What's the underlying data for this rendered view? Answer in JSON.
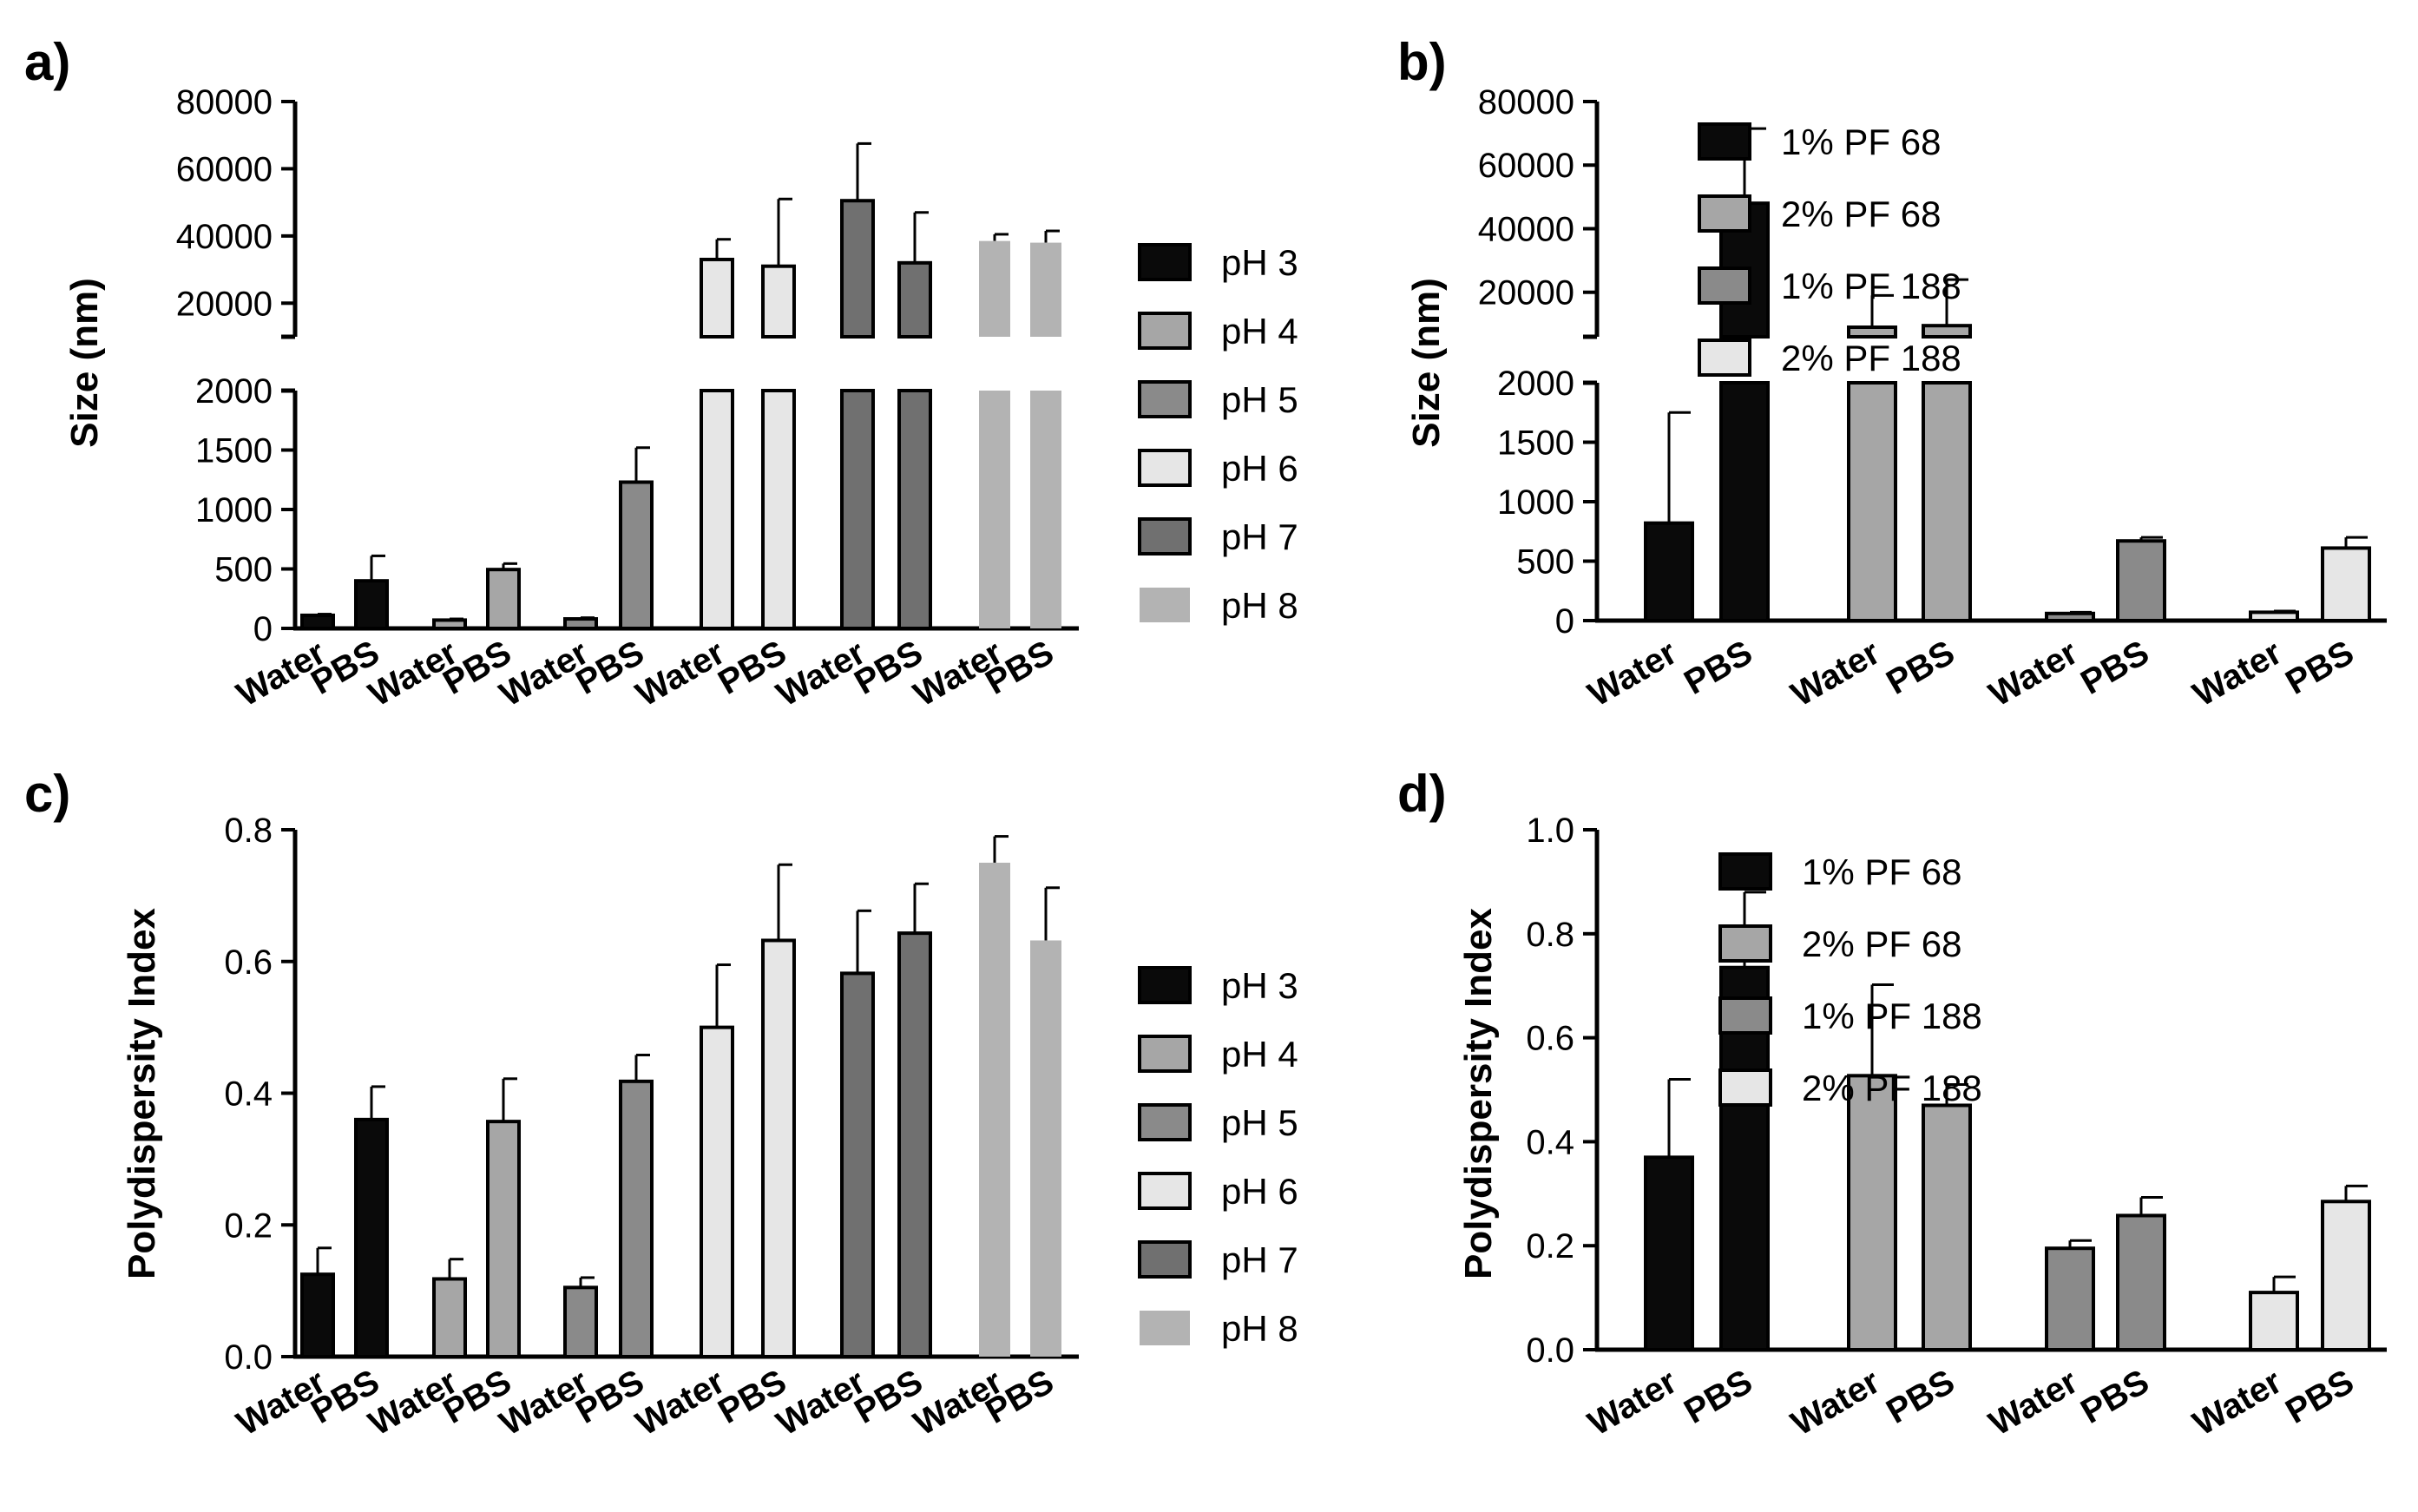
{
  "colors": {
    "pH 3": "#0a0a0a",
    "pH 4": "#a6a6a6",
    "pH 5": "#8a8a8a",
    "pH 6": "#e6e6e6",
    "pH 7": "#707070",
    "pH 8": "#b3b3b3",
    "1% PF 68": "#0a0a0a",
    "2% PF 68": "#a6a6a6",
    "1% PF 188": "#8a8a8a",
    "2% PF 188": "#e6e6e6"
  },
  "chart_data": [
    {
      "id": "a",
      "panel_label": "a)",
      "type": "bar",
      "ylabel": "Size (nm)",
      "x_categories": [
        "Water",
        "PBS"
      ],
      "broken_axis": true,
      "lower_ylim": [
        0,
        2000
      ],
      "lower_ticks": [
        0,
        500,
        1000,
        1500,
        2000
      ],
      "upper_ylim": [
        10000,
        80000
      ],
      "upper_ticks": [
        20000,
        40000,
        60000,
        80000
      ],
      "series": [
        {
          "name": "pH 3",
          "values": [
            110,
            400
          ],
          "errors": [
            10,
            210
          ]
        },
        {
          "name": "pH 4",
          "values": [
            70,
            495
          ],
          "errors": [
            10,
            50
          ]
        },
        {
          "name": "pH 5",
          "values": [
            80,
            1230
          ],
          "errors": [
            10,
            290
          ]
        },
        {
          "name": "pH 6",
          "values": [
            33000,
            31000
          ],
          "errors": [
            6000,
            20000
          ]
        },
        {
          "name": "pH 7",
          "values": [
            50500,
            32000
          ],
          "errors": [
            17000,
            15000
          ]
        },
        {
          "name": "pH 8",
          "values": [
            38500,
            38000
          ],
          "errors": [
            2000,
            3500
          ]
        }
      ]
    },
    {
      "id": "b",
      "panel_label": "b)",
      "type": "bar",
      "ylabel": "Size (nm)",
      "x_categories": [
        "Water",
        "PBS"
      ],
      "broken_axis": true,
      "lower_ylim": [
        0,
        2000
      ],
      "lower_ticks": [
        0,
        500,
        1000,
        1500,
        2000
      ],
      "upper_ylim": [
        6000,
        80000
      ],
      "upper_ticks": [
        20000,
        40000,
        60000,
        80000
      ],
      "series": [
        {
          "name": "1% PF 68",
          "values": [
            820,
            48000
          ],
          "errors": [
            930,
            23500
          ]
        },
        {
          "name": "2% PF 68",
          "values": [
            9000,
            9500
          ],
          "errors": [
            10000,
            14500
          ]
        },
        {
          "name": "1% PF 188",
          "values": [
            60,
            670
          ],
          "errors": [
            10,
            30
          ]
        },
        {
          "name": "2% PF 188",
          "values": [
            70,
            610
          ],
          "errors": [
            10,
            90
          ]
        }
      ]
    },
    {
      "id": "c",
      "panel_label": "c)",
      "type": "bar",
      "ylabel": "Polydispersity Index",
      "x_categories": [
        "Water",
        "PBS"
      ],
      "broken_axis": false,
      "ylim": [
        0,
        0.8
      ],
      "ticks": [
        "0.0",
        "0.2",
        "0.4",
        "0.6",
        "0.8"
      ],
      "series": [
        {
          "name": "pH 3",
          "values": [
            0.125,
            0.36
          ],
          "errors": [
            0.04,
            0.05
          ]
        },
        {
          "name": "pH 4",
          "values": [
            0.118,
            0.357
          ],
          "errors": [
            0.03,
            0.065
          ]
        },
        {
          "name": "pH 5",
          "values": [
            0.105,
            0.418
          ],
          "errors": [
            0.015,
            0.04
          ]
        },
        {
          "name": "pH 6",
          "values": [
            0.5,
            0.632
          ],
          "errors": [
            0.095,
            0.115
          ]
        },
        {
          "name": "pH 7",
          "values": [
            0.582,
            0.643
          ],
          "errors": [
            0.095,
            0.075
          ]
        },
        {
          "name": "pH 8",
          "values": [
            0.75,
            0.632
          ],
          "errors": [
            0.04,
            0.08
          ]
        }
      ]
    },
    {
      "id": "d",
      "panel_label": "d)",
      "type": "bar",
      "ylabel": "Polydispersity Index",
      "x_categories": [
        "Water",
        "PBS"
      ],
      "broken_axis": false,
      "ylim": [
        0,
        1.0
      ],
      "ticks": [
        "0.0",
        "0.2",
        "0.4",
        "0.6",
        "0.8",
        "1.0"
      ],
      "series": [
        {
          "name": "1% PF 68",
          "values": [
            0.37,
            0.735
          ],
          "errors": [
            0.15,
            0.145
          ]
        },
        {
          "name": "2% PF 68",
          "values": [
            0.527,
            0.47
          ],
          "errors": [
            0.175,
            0.04
          ]
        },
        {
          "name": "1% PF 188",
          "values": [
            0.195,
            0.258
          ],
          "errors": [
            0.015,
            0.035
          ]
        },
        {
          "name": "2% PF 188",
          "values": [
            0.11,
            0.285
          ],
          "errors": [
            0.03,
            0.03
          ]
        }
      ]
    }
  ]
}
